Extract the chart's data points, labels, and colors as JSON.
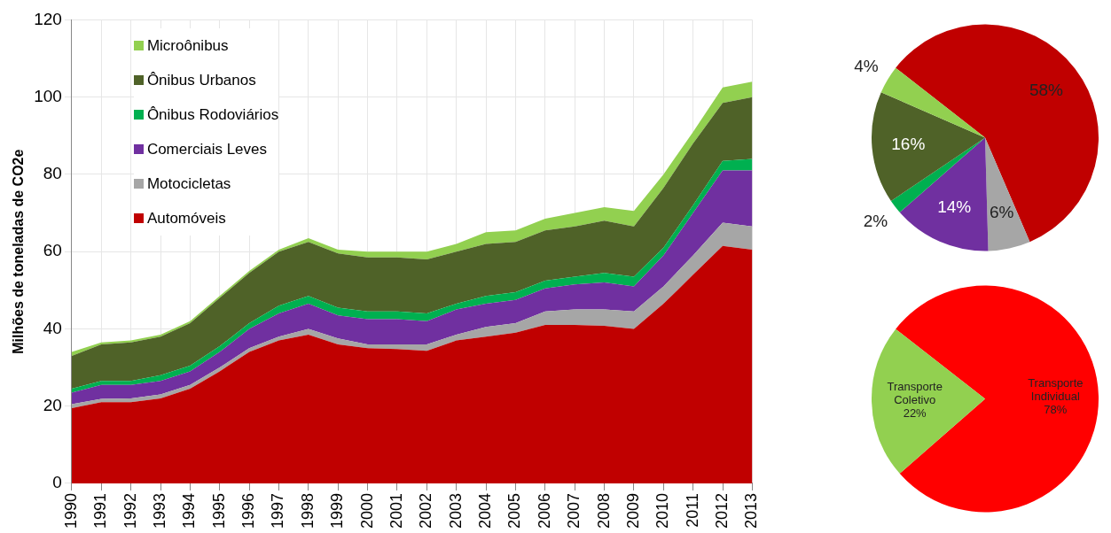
{
  "chart_data": [
    {
      "type": "area",
      "ylabel": "Milhões de toneladas de CO2e",
      "stacked": true,
      "grid": true,
      "legend": "top left",
      "categories": [
        "1990",
        "1991",
        "1992",
        "1993",
        "1994",
        "1995",
        "1996",
        "1997",
        "1998",
        "1999",
        "2000",
        "2001",
        "2002",
        "2003",
        "2004",
        "2005",
        "2006",
        "2007",
        "2008",
        "2009",
        "2010",
        "2011",
        "2012",
        "2013"
      ],
      "ylim": [
        0,
        120
      ],
      "yticks": [
        0,
        20,
        40,
        60,
        80,
        100,
        120
      ],
      "series": [
        {
          "name": "Automóveis",
          "color": "#c00000",
          "values": [
            19.5,
            21,
            21,
            22,
            24.5,
            29,
            34,
            37,
            38.5,
            36,
            35,
            34.8,
            34.3,
            37,
            38,
            39,
            41,
            41,
            40.8,
            40,
            46.5,
            54,
            61.5,
            60.5
          ]
        },
        {
          "name": "Motocicletas",
          "color": "#a6a6a6",
          "values": [
            1,
            0.9,
            1,
            1,
            1,
            1,
            1,
            1,
            1.5,
            1.5,
            1,
            1.2,
            1.7,
            1.5,
            2.5,
            2.5,
            3.5,
            4,
            4.2,
            4.5,
            4.5,
            5,
            6,
            6
          ]
        },
        {
          "name": "Comerciais Leves",
          "color": "#7030a0",
          "values": [
            3,
            3.6,
            3.5,
            3.5,
            3.5,
            4,
            5,
            6,
            6.5,
            6,
            6.5,
            6.5,
            6,
            6.5,
            6,
            6,
            6,
            6.5,
            7,
            6.5,
            8,
            11,
            13.5,
            14.5
          ]
        },
        {
          "name": "Ônibus Rodoviários",
          "color": "#00b050",
          "values": [
            1,
            1,
            1,
            1.5,
            1.5,
            1.5,
            1.5,
            2,
            2,
            2,
            2,
            2,
            2,
            1.5,
            2,
            2,
            2,
            2,
            2.5,
            2.5,
            2,
            2,
            2.5,
            3
          ]
        },
        {
          "name": "Ônibus Urbanos",
          "color": "#4f6228",
          "values": [
            8.5,
            9.5,
            10,
            10,
            11,
            12.5,
            13,
            14,
            14,
            14,
            14,
            14,
            14,
            13.5,
            13.5,
            13,
            13,
            13,
            13.5,
            13,
            15.5,
            16,
            15,
            16
          ]
        },
        {
          "name": "Microônibus",
          "color": "#92d050",
          "values": [
            1,
            0.5,
            0.5,
            0.5,
            0.5,
            0.5,
            0.5,
            0.5,
            1,
            1,
            1.5,
            1.5,
            2,
            2,
            3,
            3,
            3,
            3.5,
            3.5,
            4,
            3.5,
            3,
            4,
            4
          ]
        }
      ]
    },
    {
      "type": "pie",
      "categories": [
        null,
        null,
        null,
        null,
        null,
        null
      ],
      "values": [
        58,
        6,
        14,
        2,
        16,
        4
      ],
      "colors": [
        "#c00000",
        "#a6a6a6",
        "#7030a0",
        "#00b050",
        "#4f6228",
        "#92d050"
      ],
      "value_labels": [
        "58%",
        "6%",
        "14%",
        "2%",
        "16%",
        "4%"
      ]
    },
    {
      "type": "pie",
      "categories": [
        "Transporte Individual",
        "Transporte Coletivo"
      ],
      "values": [
        78,
        22
      ],
      "colors": [
        "#ff0000",
        "#92d050"
      ],
      "value_labels": [
        "78%",
        "22%"
      ]
    }
  ]
}
